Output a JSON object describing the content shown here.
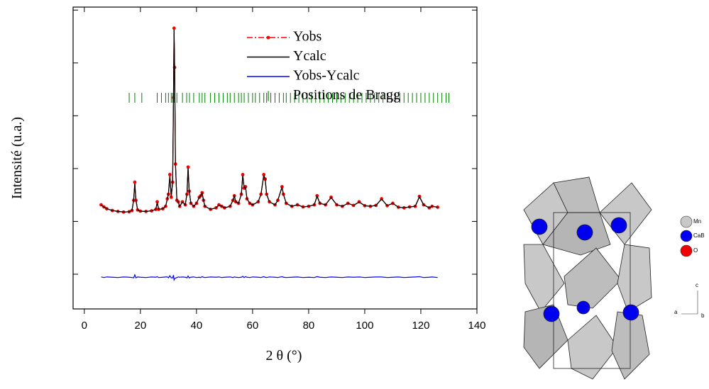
{
  "chart_data": {
    "type": "line",
    "x_label": "2 θ (°)",
    "y_label": "Intensité (u.a.)",
    "xlim": [
      -4,
      140
    ],
    "xticks": [
      0,
      20,
      40,
      60,
      80,
      100,
      120,
      140
    ],
    "ylim": [
      0,
      100
    ],
    "yticks": [
      11.5,
      29,
      46.5,
      64,
      81.5,
      99
    ],
    "legend": "upper right",
    "x": [
      6,
      7,
      8,
      10,
      12,
      14,
      16,
      17,
      17.6,
      18,
      18.4,
      19,
      20,
      22,
      24,
      25.5,
      26,
      26.5,
      28,
      29,
      29.6,
      30,
      30.5,
      31,
      31.5,
      31.8,
      32,
      32.2,
      32.5,
      33,
      33.5,
      34,
      35,
      36,
      36.6,
      37,
      37.4,
      38,
      39,
      40,
      41,
      41.5,
      42,
      42.5,
      43,
      45,
      47,
      48,
      49,
      50,
      52,
      53,
      53.5,
      54,
      55,
      56,
      56.5,
      57,
      57.5,
      58,
      59,
      60,
      62,
      63,
      64,
      64.5,
      65,
      66,
      68,
      69,
      70.5,
      71,
      72,
      74,
      76,
      78,
      80,
      82,
      83,
      84,
      86,
      88,
      90,
      92,
      94,
      96,
      98,
      100,
      102,
      104,
      106,
      108,
      110,
      112,
      114,
      116,
      118,
      119.5,
      121,
      123,
      124,
      126
    ],
    "series": [
      {
        "name": "Yobs",
        "color": "#ff0000",
        "marker": "circle",
        "dash": "dashdot",
        "values": [
          34.5,
          33.8,
          33.2,
          32.6,
          32.3,
          32.1,
          32.2,
          32.6,
          36,
          42,
          36,
          32.8,
          32.4,
          32.3,
          32.5,
          33,
          35.5,
          33,
          33.2,
          34,
          36.5,
          38,
          44.5,
          37,
          42,
          70,
          93,
          80,
          48,
          36,
          35.5,
          34,
          35.5,
          34.5,
          38,
          47,
          39,
          35,
          34,
          35,
          37,
          37.5,
          38.5,
          36,
          34,
          33,
          33.5,
          34.5,
          34,
          33.5,
          34,
          36,
          37.5,
          35.5,
          35,
          38,
          44.5,
          40,
          40.5,
          36.5,
          35,
          34.5,
          35.5,
          38,
          44.5,
          43,
          38,
          35.5,
          34.5,
          36,
          40.5,
          38,
          35,
          34,
          34.5,
          33.8,
          34,
          34.5,
          37.5,
          35,
          34.5,
          37,
          34.5,
          34,
          35,
          34.3,
          35.5,
          34.2,
          34,
          34.3,
          36.5,
          34.2,
          35,
          33.7,
          33.5,
          33.8,
          34,
          37.3,
          34.5,
          33.5,
          34,
          33.7
        ]
      },
      {
        "name": "Ycalc",
        "color": "#000000",
        "values": [
          34.4,
          33.8,
          33.2,
          32.6,
          32.3,
          32.1,
          32.2,
          32.7,
          36.2,
          41.5,
          36.2,
          32.8,
          32.4,
          32.3,
          32.5,
          33,
          35.3,
          33,
          33.2,
          34,
          36.4,
          38.2,
          44,
          37.2,
          42.2,
          69.5,
          92.5,
          80.5,
          48.3,
          36.1,
          35.4,
          34,
          35.4,
          34.5,
          38.2,
          46.6,
          39.2,
          35,
          34,
          35,
          37,
          37.6,
          38.3,
          36,
          34,
          33,
          33.5,
          34.4,
          34,
          33.5,
          34,
          36,
          37.4,
          35.5,
          35,
          38,
          44.2,
          40.1,
          40.3,
          36.5,
          35,
          34.5,
          35.5,
          38,
          44.3,
          43,
          38,
          35.5,
          34.5,
          36,
          40.3,
          38,
          35,
          34,
          34.5,
          33.8,
          34,
          34.5,
          37.3,
          35,
          34.5,
          36.9,
          34.5,
          34,
          35,
          34.3,
          35.4,
          34.2,
          34,
          34.3,
          36.4,
          34.2,
          35,
          33.7,
          33.5,
          33.8,
          34,
          37.1,
          34.5,
          33.5,
          34,
          33.7
        ]
      },
      {
        "name": "Yobs-Ycalc",
        "color": "#0000ff",
        "values": [
          10.6,
          10.4,
          10.6,
          10.5,
          10.4,
          10.6,
          10.5,
          10.4,
          10.3,
          11.3,
          10.3,
          10.6,
          10.5,
          10.4,
          10.6,
          10.5,
          10.7,
          10.4,
          10.5,
          10.6,
          10.6,
          10.3,
          11,
          10.3,
          10.3,
          11.2,
          9.6,
          10,
          10.2,
          10.4,
          10.6,
          10.5,
          10.6,
          10.5,
          10.3,
          10.9,
          10.3,
          10.5,
          10.6,
          10.4,
          10.5,
          10.4,
          10.7,
          10.5,
          10.4,
          10.6,
          10.5,
          10.6,
          10.4,
          10.5,
          10.6,
          10.4,
          10.6,
          10.5,
          10.4,
          10.5,
          10.8,
          10.4,
          10.7,
          10.5,
          10.4,
          10.6,
          10.5,
          10.4,
          10.7,
          10.5,
          10.4,
          10.6,
          10.5,
          10.4,
          10.7,
          10.5,
          10.4,
          10.5,
          10.6,
          10.4,
          10.5,
          10.4,
          10.7,
          10.5,
          10.4,
          10.6,
          10.5,
          10.4,
          10.6,
          10.5,
          10.6,
          10.4,
          10.5,
          10.6,
          10.6,
          10.4,
          10.5,
          10.6,
          10.4,
          10.5,
          10.6,
          10.7,
          10.4,
          10.5,
          10.6,
          10.4
        ]
      }
    ],
    "bragg": {
      "name": "Positions de Bragg",
      "color": "#008000",
      "x": [
        16,
        18,
        20.5,
        26,
        27.5,
        29,
        30,
        31,
        31.5,
        32,
        33,
        35,
        36.5,
        37.5,
        39,
        41,
        42,
        43,
        45,
        46.5,
        48,
        49.5,
        51,
        52,
        53.5,
        55,
        56,
        57,
        58.5,
        60,
        61,
        62.5,
        64,
        65,
        66.5,
        68,
        69.5,
        71,
        72,
        73.5,
        75,
        76.5,
        78,
        79.5,
        81,
        82.5,
        84,
        85.5,
        87,
        88.5,
        90,
        91.5,
        93,
        94.5,
        96,
        97.5,
        99,
        100.5,
        102,
        103.5,
        105,
        106.5,
        108,
        109.5,
        111,
        112.5,
        114,
        115.5,
        117,
        118.5,
        120,
        121.5,
        123,
        124.5,
        126,
        127.5,
        129,
        130
      ]
    }
  },
  "structure": {
    "legend": [
      "Mn",
      "CaB",
      "O"
    ],
    "axes": [
      "c",
      "a",
      "b"
    ]
  }
}
